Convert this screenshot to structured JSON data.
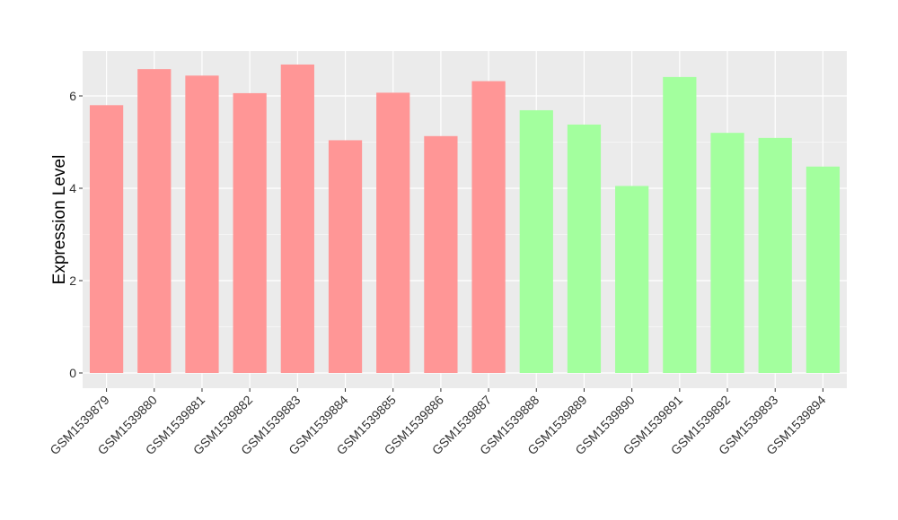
{
  "chart_data": {
    "type": "bar",
    "title": "",
    "xlabel": "",
    "ylabel": "Expression Level",
    "ylim": [
      -0.3,
      7.0
    ],
    "yticks": [
      0,
      2,
      4,
      6
    ],
    "grid": true,
    "categories": [
      "GSM1539879",
      "GSM1539880",
      "GSM1539881",
      "GSM1539882",
      "GSM1539883",
      "GSM1539884",
      "GSM1539885",
      "GSM1539886",
      "GSM1539887",
      "GSM1539888",
      "GSM1539889",
      "GSM1539890",
      "GSM1539891",
      "GSM1539892",
      "GSM1539893",
      "GSM1539894"
    ],
    "values": [
      5.8,
      6.58,
      6.44,
      6.06,
      6.68,
      5.04,
      6.07,
      5.13,
      6.32,
      5.69,
      5.38,
      4.05,
      6.41,
      5.2,
      5.09,
      4.47
    ],
    "colors": [
      "#ff9696",
      "#ff9696",
      "#ff9696",
      "#ff9696",
      "#ff9696",
      "#ff9696",
      "#ff9696",
      "#ff9696",
      "#ff9696",
      "#a3ff9e",
      "#a3ff9e",
      "#a3ff9e",
      "#a3ff9e",
      "#a3ff9e",
      "#a3ff9e",
      "#a3ff9e"
    ]
  },
  "style": {
    "panel_background": "#ebebeb",
    "grid_color": "#ffffff"
  }
}
